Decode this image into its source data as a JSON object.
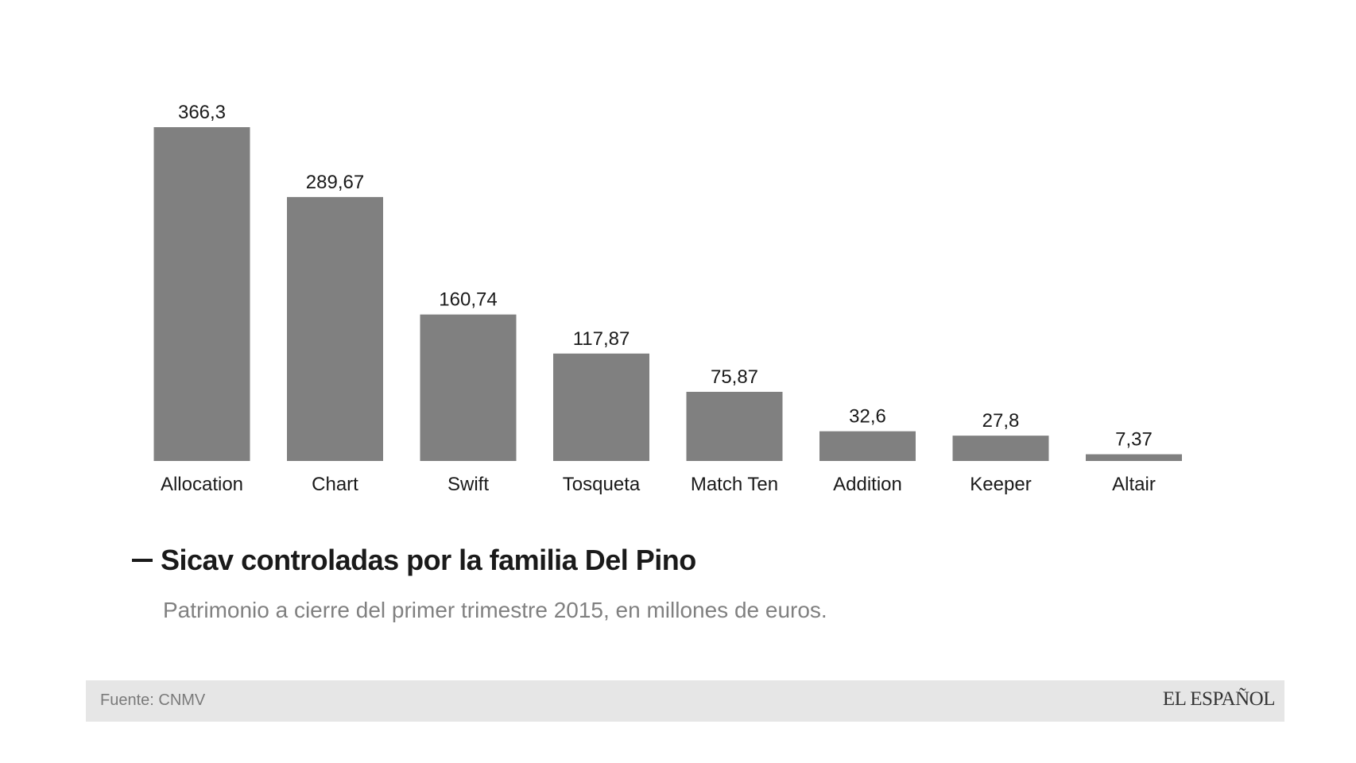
{
  "chart_data": {
    "type": "bar",
    "categories": [
      "Allocation",
      "Chart",
      "Swift",
      "Tosqueta",
      "Match Ten",
      "Addition",
      "Keeper",
      "Altair"
    ],
    "values": [
      366.3,
      289.67,
      160.74,
      117.87,
      75.87,
      32.6,
      27.8,
      7.37
    ],
    "value_labels": [
      "366,3",
      "289,67",
      "160,74",
      "117,87",
      "75,87",
      "32,6",
      "27,8",
      "7,37"
    ],
    "bar_color": "#808080",
    "ylim": [
      0,
      366.3
    ],
    "grid": false
  },
  "title": "Sicav controladas por la familia Del Pino",
  "subtitle": "Patrimonio a cierre del primer trimestre 2015, en millones de euros.",
  "footer": {
    "source": "Fuente: CNMV",
    "brand": "EL ESPAÑOL"
  }
}
